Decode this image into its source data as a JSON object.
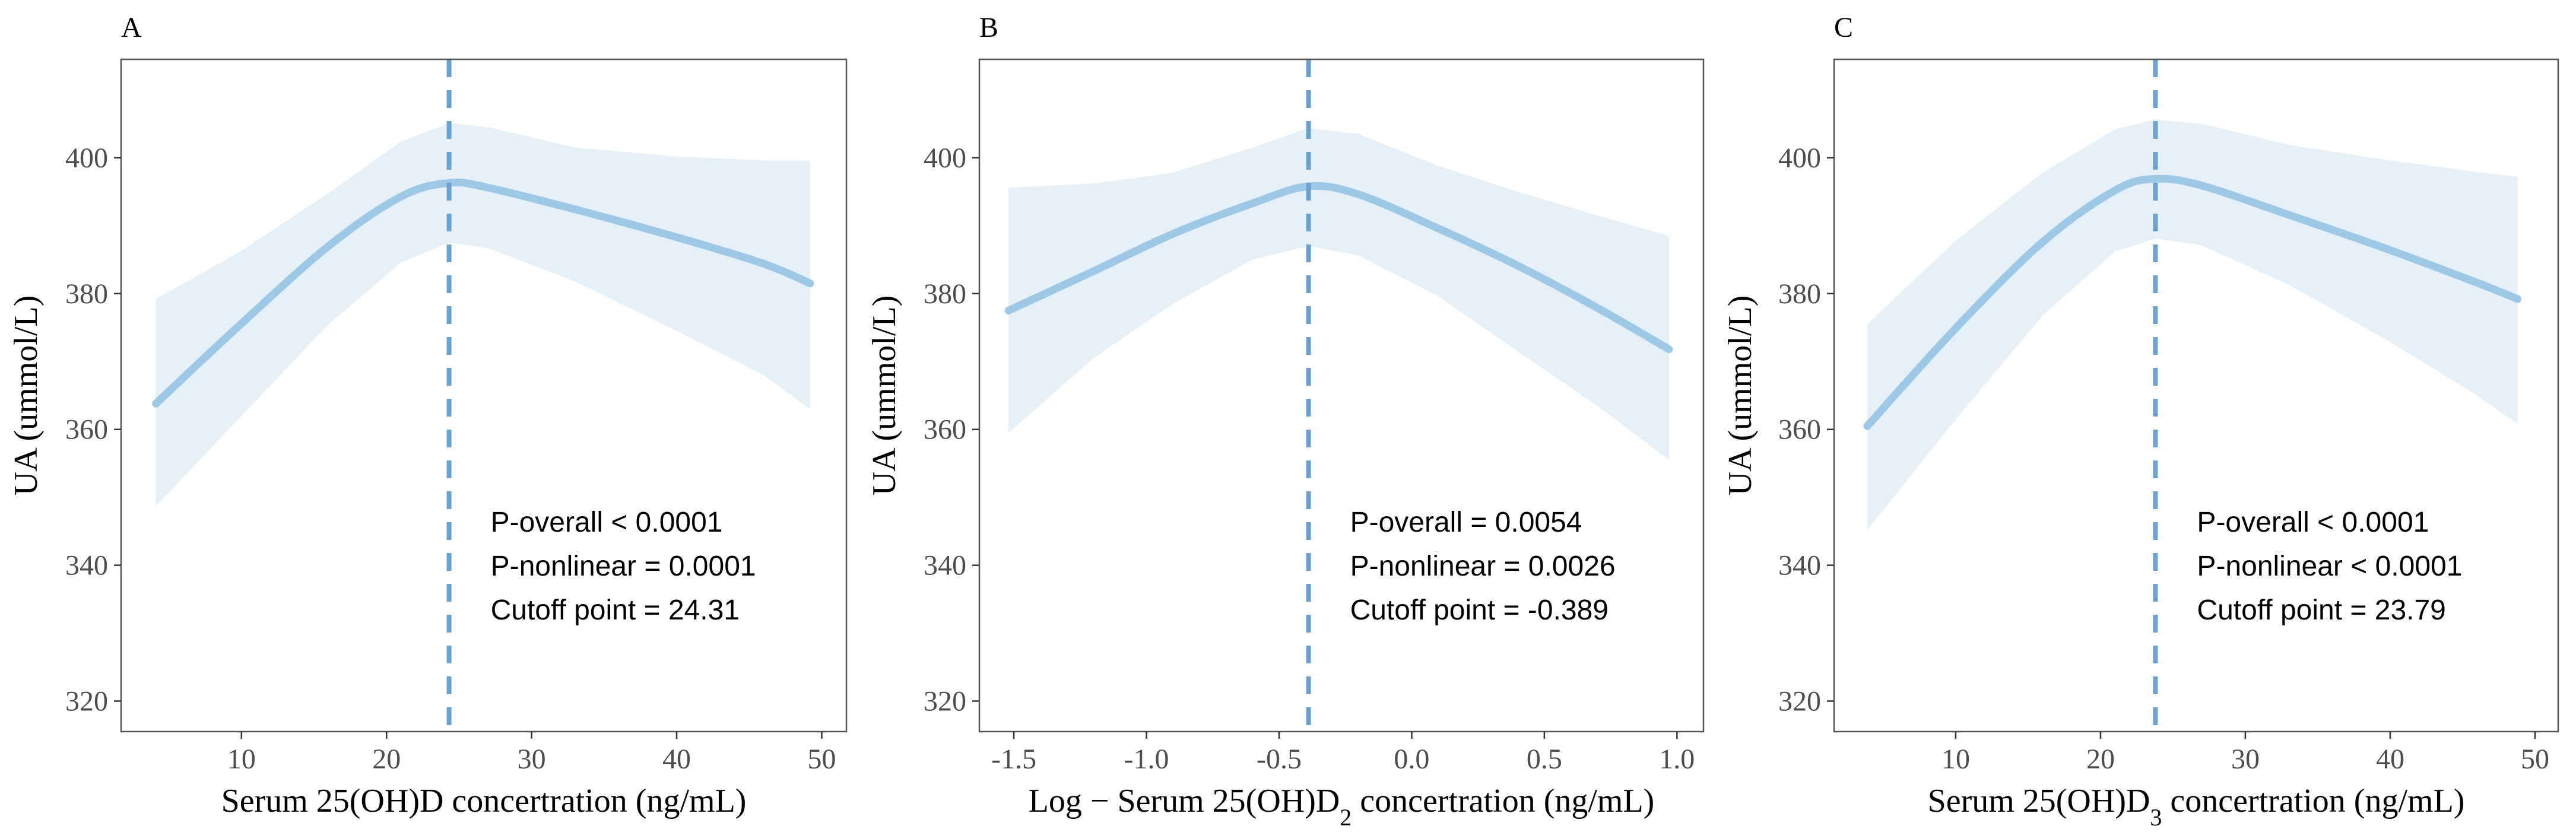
{
  "chart_data": [
    {
      "type": "line",
      "panel_label": "A",
      "xlabel": "Serum 25(OH)D concertration (ng/mL)",
      "ylabel": "UA (ummol/L)",
      "xlim": [
        1.7,
        51.7
      ],
      "ylim": [
        315.5,
        414.5
      ],
      "xticks": [
        10,
        20,
        30,
        40,
        50
      ],
      "yticks": [
        320,
        340,
        360,
        380,
        400
      ],
      "cutoff": 24.31,
      "series": [
        {
          "name": "fit",
          "x": [
            4.1,
            10,
            16,
            21,
            24.31,
            27,
            33,
            40,
            46,
            49.2
          ],
          "y": [
            363.8,
            375.6,
            387.0,
            394.3,
            396.3,
            395.6,
            392.4,
            388.3,
            384.4,
            381.5
          ]
        },
        {
          "name": "lower 95% CI",
          "x": [
            4.1,
            10,
            16,
            21,
            24.31,
            27,
            33,
            40,
            46,
            49.2
          ],
          "y": [
            348.7,
            362.0,
            375.5,
            384.6,
            387.5,
            386.7,
            381.8,
            374.5,
            368.0,
            363.0
          ]
        },
        {
          "name": "upper 95% CI",
          "x": [
            4.1,
            10,
            16,
            21,
            24.31,
            27,
            33,
            40,
            46,
            49.2
          ],
          "y": [
            379.2,
            386.3,
            394.8,
            402.4,
            405.1,
            404.5,
            401.5,
            400.2,
            399.6,
            399.6
          ]
        }
      ],
      "annotations": [
        "P-overall < 0.0001",
        "P-nonlinear = 0.0001",
        "Cutoff point = 24.31"
      ]
    },
    {
      "type": "line",
      "panel_label": "B",
      "xlabel": "Log − Serum 25(OH)D2 concertration (ng/mL)",
      "ylabel": "UA (ummol/L)",
      "xlim": [
        -1.63,
        1.1
      ],
      "ylim": [
        315.5,
        414.5
      ],
      "xticks": [
        -1.5,
        -1.0,
        -0.5,
        0.0,
        0.5,
        1.0
      ],
      "yticks": [
        320,
        340,
        360,
        380,
        400
      ],
      "cutoff": -0.389,
      "series": [
        {
          "name": "fit",
          "x": [
            -1.52,
            -1.2,
            -0.9,
            -0.6,
            -0.389,
            -0.2,
            0.1,
            0.4,
            0.7,
            0.97
          ],
          "y": [
            377.5,
            383.3,
            388.8,
            393.3,
            395.8,
            394.6,
            389.6,
            384.1,
            377.9,
            371.8
          ]
        },
        {
          "name": "lower 95% CI",
          "x": [
            -1.52,
            -1.2,
            -0.9,
            -0.6,
            -0.389,
            -0.2,
            0.1,
            0.4,
            0.7,
            0.97
          ],
          "y": [
            359.5,
            370.5,
            378.5,
            385.0,
            387.0,
            385.6,
            379.6,
            371.5,
            363.5,
            355.5
          ]
        },
        {
          "name": "upper 95% CI",
          "x": [
            -1.52,
            -1.2,
            -0.9,
            -0.6,
            -0.389,
            -0.2,
            0.1,
            0.4,
            0.7,
            0.97
          ],
          "y": [
            395.6,
            396.2,
            397.8,
            401.5,
            404.4,
            403.5,
            398.8,
            395.0,
            391.5,
            388.5
          ]
        }
      ],
      "annotations": [
        "P-overall = 0.0054",
        "P-nonlinear = 0.0026",
        "Cutoff point = -0.389"
      ]
    },
    {
      "type": "line",
      "panel_label": "C",
      "xlabel": "Serum 25(OH)D3 concertration (ng/mL)",
      "ylabel": "UA (ummol/L)",
      "xlim": [
        1.6,
        51.6
      ],
      "ylim": [
        315.5,
        414.5
      ],
      "xticks": [
        10,
        20,
        30,
        40,
        50
      ],
      "yticks": [
        320,
        340,
        360,
        380,
        400
      ],
      "cutoff": 23.79,
      "series": [
        {
          "name": "fit",
          "x": [
            3.9,
            10,
            16,
            21,
            23.79,
            27,
            33,
            40,
            46,
            48.8
          ],
          "y": [
            360.5,
            374.9,
            387.6,
            395.2,
            396.9,
            395.9,
            391.6,
            386.4,
            381.6,
            379.2
          ]
        },
        {
          "name": "lower 95% CI",
          "x": [
            3.9,
            10,
            16,
            21,
            23.79,
            27,
            33,
            40,
            46,
            48.8
          ],
          "y": [
            345.2,
            361.5,
            376.8,
            386.2,
            388.1,
            387.1,
            381.3,
            372.9,
            365.0,
            360.8
          ]
        },
        {
          "name": "upper 95% CI",
          "x": [
            3.9,
            10,
            16,
            21,
            23.79,
            27,
            33,
            40,
            46,
            48.8
          ],
          "y": [
            375.5,
            387.8,
            397.8,
            404.2,
            405.6,
            405.0,
            401.9,
            399.6,
            397.9,
            397.2
          ]
        }
      ],
      "annotations": [
        "P-overall < 0.0001",
        "P-nonlinear < 0.0001",
        "Cutoff point = 23.79"
      ]
    }
  ]
}
